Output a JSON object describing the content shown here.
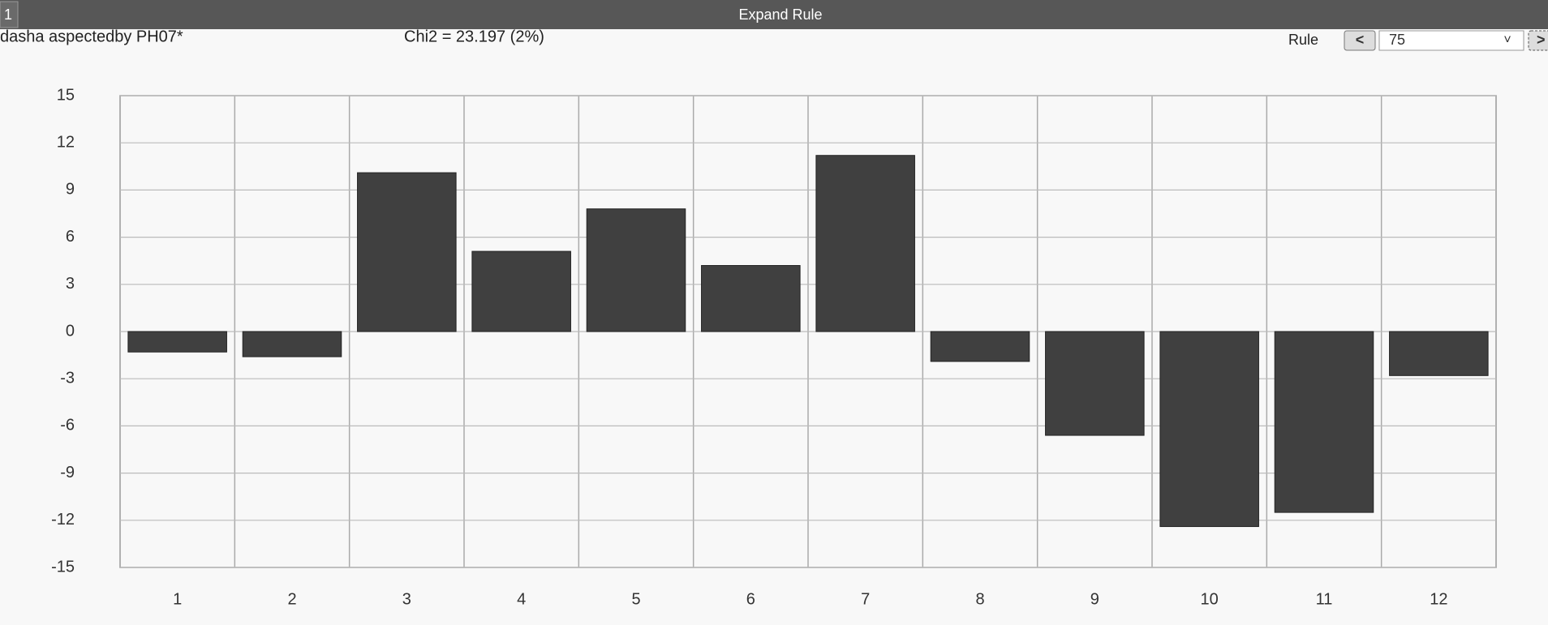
{
  "window": {
    "number": "1",
    "title": "Expand Rule"
  },
  "header": {
    "left": "dasha aspectedby PH07*",
    "stat": "Chi2 = 23.197 (2%)",
    "rule_label": "Rule",
    "prev_button": "<",
    "rule_value": "75",
    "dropdown_arrow": "˅",
    "next_button": ">"
  },
  "chart_data": {
    "type": "bar",
    "categories": [
      "1",
      "2",
      "3",
      "4",
      "5",
      "6",
      "7",
      "8",
      "9",
      "10",
      "11",
      "12"
    ],
    "values": [
      -1.3,
      -1.6,
      10.1,
      5.1,
      7.8,
      4.2,
      11.2,
      -1.9,
      -6.6,
      -12.4,
      -11.5,
      -2.8
    ],
    "color": "#404040",
    "ylim": [
      -15,
      15
    ],
    "yticks": [
      15,
      12,
      9,
      6,
      3,
      0,
      -3,
      -6,
      -9,
      -12,
      -15
    ],
    "grid": true
  }
}
